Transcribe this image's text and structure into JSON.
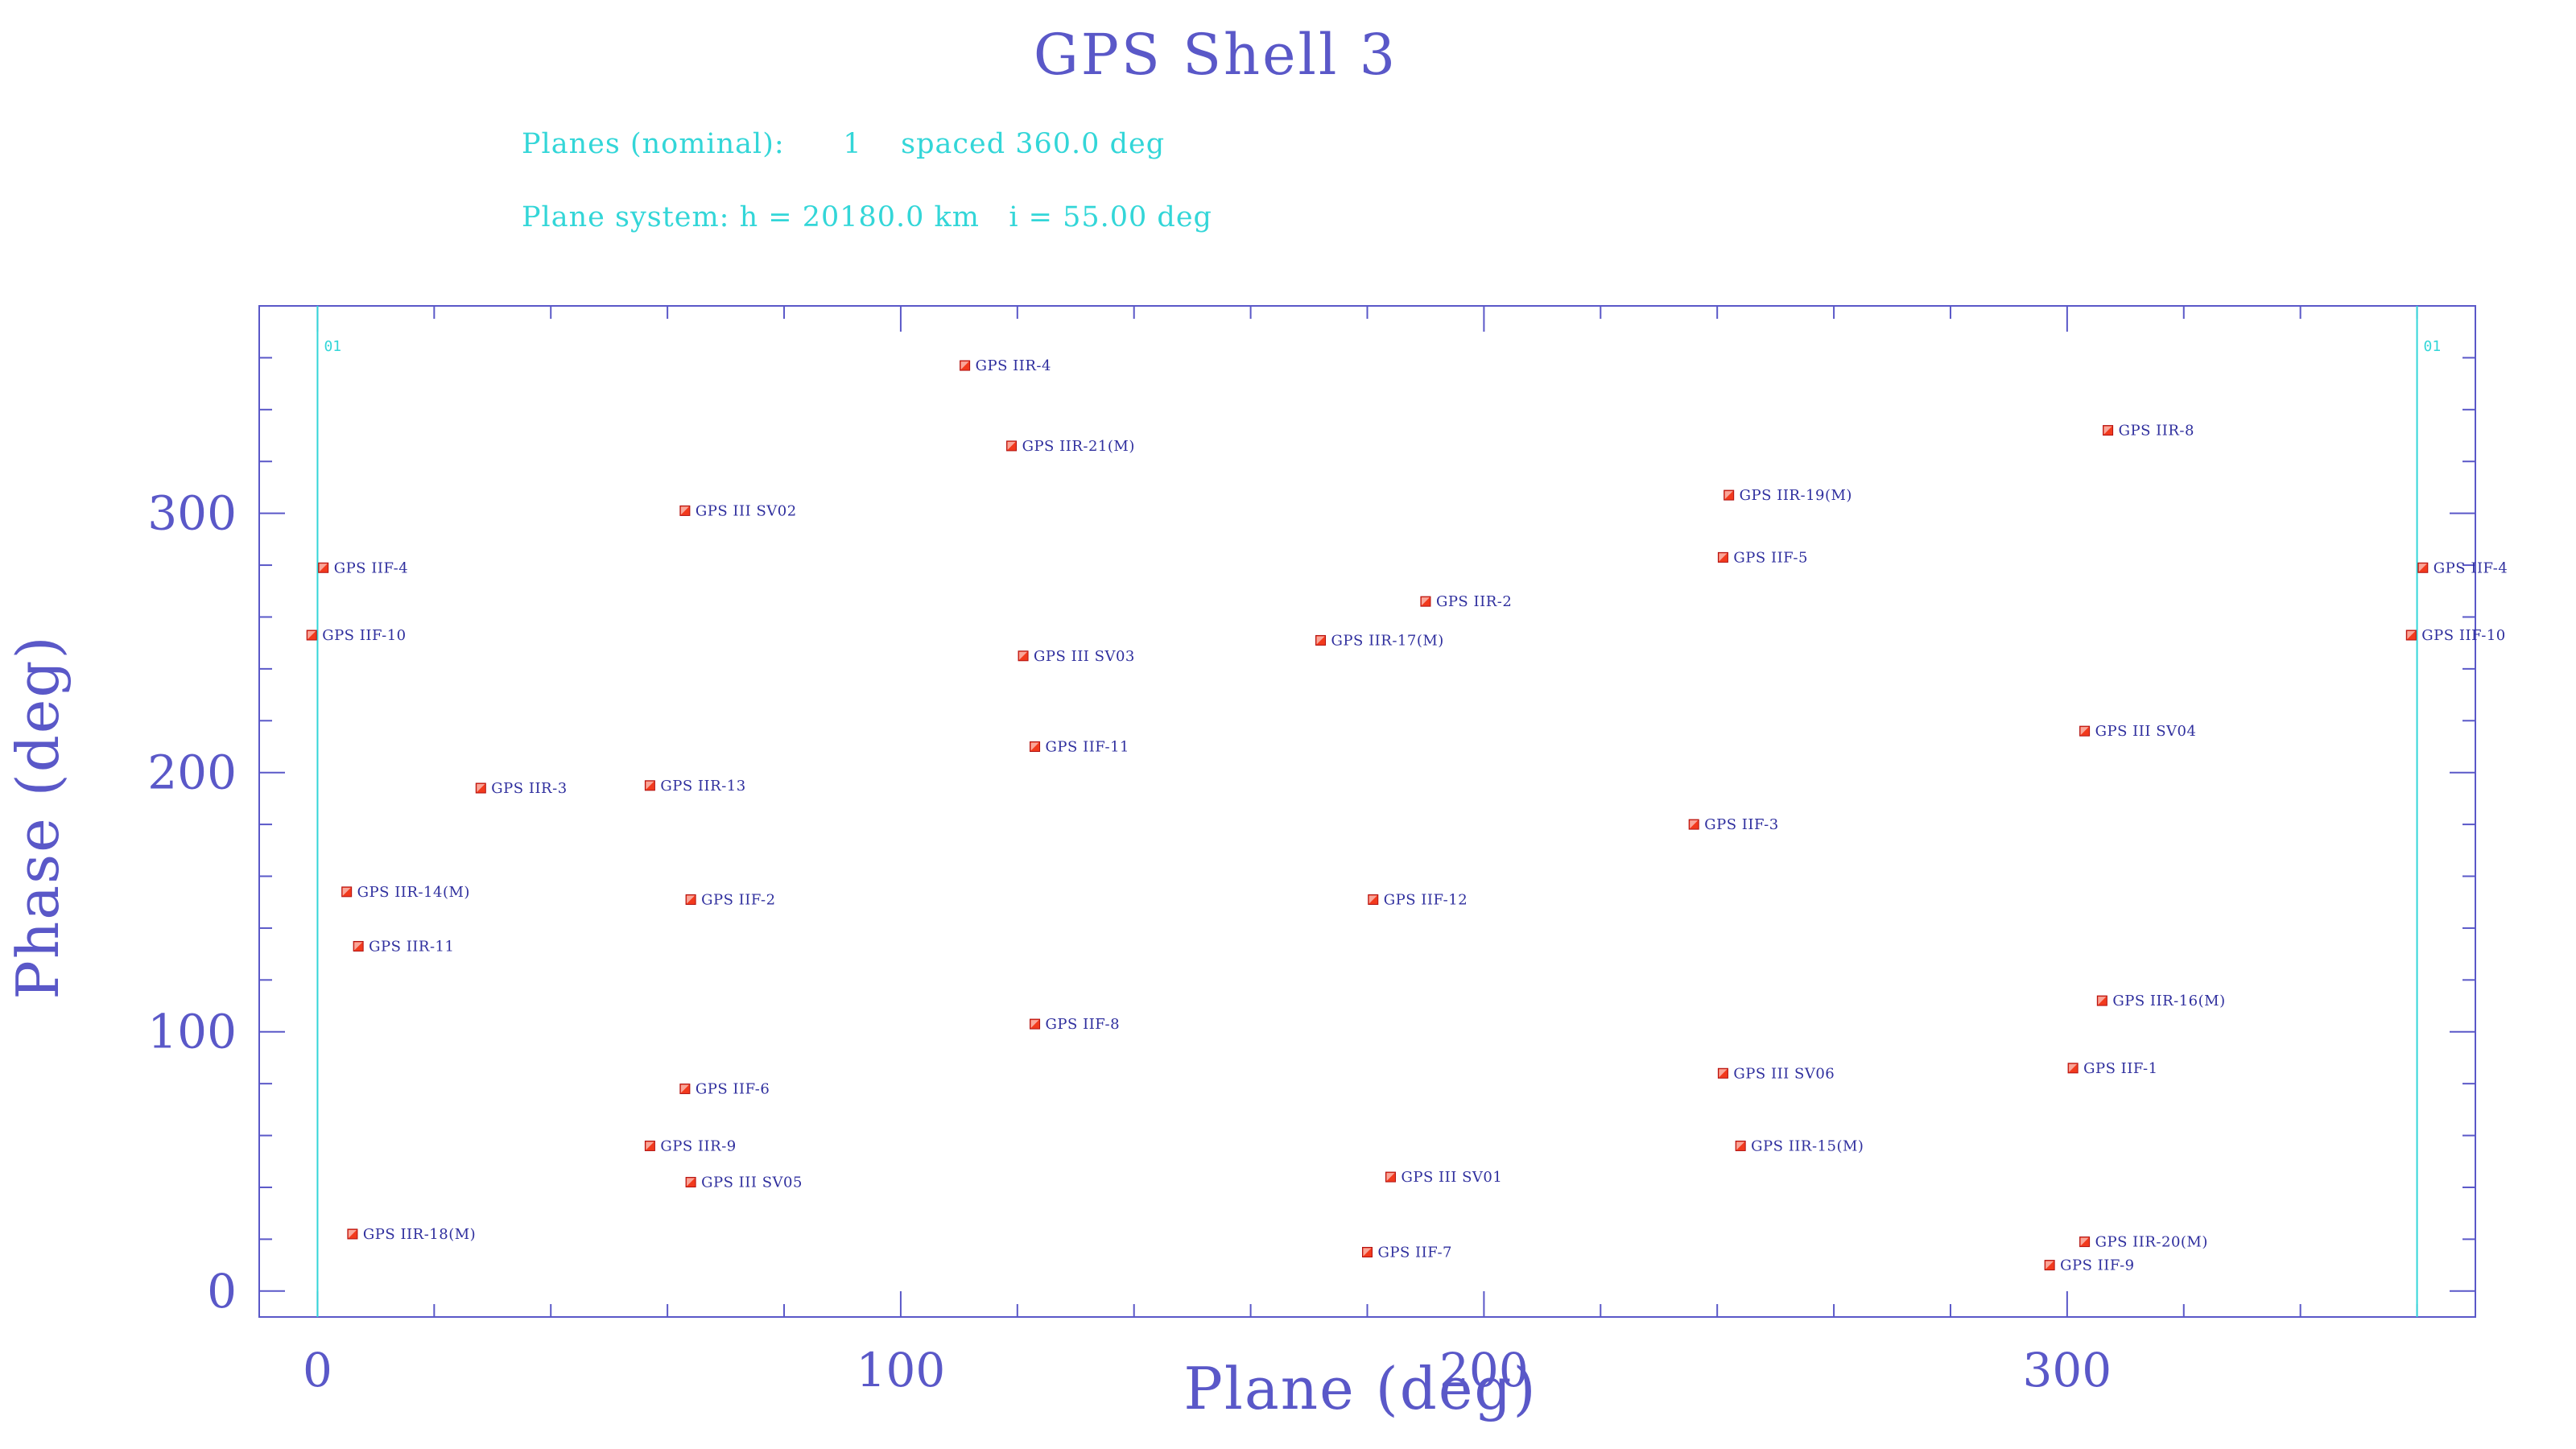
{
  "chart_data": {
    "type": "scatter",
    "title": "GPS Shell 3",
    "subtitle_line1": "Planes (nominal):      1    spaced 360.0 deg",
    "subtitle_line2": "Plane system: h = 20180.0 km   i = 55.00 deg",
    "xlabel": "Plane (deg)",
    "ylabel": "Phase (deg)",
    "xlim": [
      -10,
      370
    ],
    "ylim": [
      -10,
      380
    ],
    "xticks": [
      0,
      100,
      200,
      300
    ],
    "yticks": [
      0,
      100,
      200,
      300
    ],
    "x_minor_step": 20,
    "y_minor_step": 20,
    "planes": [
      {
        "x": 0,
        "label": "01"
      },
      {
        "x": 360,
        "label": "01"
      }
    ],
    "points": [
      {
        "x": 111,
        "y": 357,
        "label": "GPS IIR-4"
      },
      {
        "x": 119,
        "y": 326,
        "label": "GPS IIR-21(M)"
      },
      {
        "x": 307,
        "y": 332,
        "label": "GPS IIR-8"
      },
      {
        "x": 63,
        "y": 301,
        "label": "GPS III SV02"
      },
      {
        "x": 242,
        "y": 307,
        "label": "GPS IIR-19(M)"
      },
      {
        "x": 1,
        "y": 279,
        "label": "GPS IIF-4"
      },
      {
        "x": 241,
        "y": 283,
        "label": "GPS IIF-5"
      },
      {
        "x": 190,
        "y": 266,
        "label": "GPS IIR-2"
      },
      {
        "x": -1,
        "y": 253,
        "label": "GPS IIF-10"
      },
      {
        "x": 172,
        "y": 251,
        "label": "GPS IIR-17(M)"
      },
      {
        "x": 121,
        "y": 245,
        "label": "GPS III SV03"
      },
      {
        "x": 303,
        "y": 216,
        "label": "GPS III SV04"
      },
      {
        "x": 123,
        "y": 210,
        "label": "GPS IIF-11"
      },
      {
        "x": 28,
        "y": 194,
        "label": "GPS IIR-3"
      },
      {
        "x": 57,
        "y": 195,
        "label": "GPS IIR-13"
      },
      {
        "x": 236,
        "y": 180,
        "label": "GPS IIF-3"
      },
      {
        "x": 5,
        "y": 154,
        "label": "GPS IIR-14(M)"
      },
      {
        "x": 64,
        "y": 151,
        "label": "GPS IIF-2"
      },
      {
        "x": 181,
        "y": 151,
        "label": "GPS IIF-12"
      },
      {
        "x": 7,
        "y": 133,
        "label": "GPS IIR-11"
      },
      {
        "x": 306,
        "y": 112,
        "label": "GPS IIR-16(M)"
      },
      {
        "x": 123,
        "y": 103,
        "label": "GPS IIF-8"
      },
      {
        "x": 301,
        "y": 86,
        "label": "GPS IIF-1"
      },
      {
        "x": 241,
        "y": 84,
        "label": "GPS III SV06"
      },
      {
        "x": 63,
        "y": 78,
        "label": "GPS IIF-6"
      },
      {
        "x": 57,
        "y": 56,
        "label": "GPS IIR-9"
      },
      {
        "x": 244,
        "y": 56,
        "label": "GPS IIR-15(M)"
      },
      {
        "x": 64,
        "y": 42,
        "label": "GPS III SV05"
      },
      {
        "x": 184,
        "y": 44,
        "label": "GPS III SV01"
      },
      {
        "x": 6,
        "y": 22,
        "label": "GPS IIR-18(M)"
      },
      {
        "x": 303,
        "y": 19,
        "label": "GPS IIR-20(M)"
      },
      {
        "x": 180,
        "y": 15,
        "label": "GPS IIF-7"
      },
      {
        "x": 297,
        "y": 10,
        "label": "GPS IIF-9"
      },
      {
        "x": 361,
        "y": 279,
        "label": "GPS IIF-4"
      },
      {
        "x": 359,
        "y": 253,
        "label": "GPS IIF-10"
      }
    ],
    "grid": false,
    "legend": "none",
    "colors": {
      "axis": "#5a58c8",
      "subtitle": "#33d6d8",
      "plane_line": "#33d6d8",
      "marker": "#f23a1d",
      "label": "#2f2f9e"
    }
  }
}
